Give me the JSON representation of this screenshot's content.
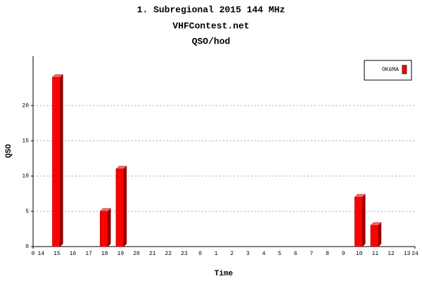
{
  "chart_data": {
    "type": "bar",
    "title": "1. Subregional 2015 144 MHz",
    "subtitle": "VHFContest.net",
    "subsubtitle": "QSO/hod",
    "x_label": "Time",
    "y_label": "QSO",
    "categories": [
      "14",
      "15",
      "16",
      "17",
      "18",
      "19",
      "20",
      "21",
      "22",
      "23",
      "0",
      "1",
      "2",
      "3",
      "4",
      "5",
      "6",
      "7",
      "8",
      "9",
      "10",
      "11",
      "12",
      "13"
    ],
    "series": [
      {
        "name": "OK6MA",
        "color": "#ff0000",
        "values": [
          0,
          24,
          0,
          0,
          5,
          11,
          0,
          0,
          0,
          0,
          0,
          0,
          0,
          0,
          0,
          0,
          0,
          0,
          0,
          0,
          7,
          3,
          0,
          0
        ]
      }
    ],
    "xlim": [
      0,
      24
    ],
    "xticks": [
      0,
      24
    ],
    "ylim": [
      0,
      27
    ],
    "yticks": [
      0,
      5,
      10,
      15,
      20
    ],
    "grid": true,
    "legend": "top-right"
  }
}
